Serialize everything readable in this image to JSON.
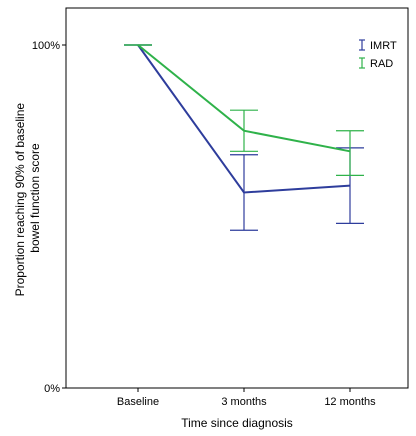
{
  "chart_data": {
    "type": "line",
    "categories": [
      "Baseline",
      "3 months",
      "12 months"
    ],
    "ylabel": "Proportion reaching 90% of baseline bowel function score",
    "ylabel_lines": [
      "Proportion reaching 90% of baseline",
      "bowel function score"
    ],
    "xlabel": "Time since diagnosis",
    "ylim": [
      0,
      100
    ],
    "y_ticks": [
      {
        "value": 0,
        "label": "0%"
      },
      {
        "value": 100,
        "label": "100%"
      }
    ],
    "grid": false,
    "legend_position": "top-right",
    "series": [
      {
        "name": "IMRT",
        "color": "#2e3d9c",
        "values": [
          100,
          57,
          59
        ],
        "lower": [
          100,
          46,
          48
        ],
        "upper": [
          100,
          68,
          70
        ]
      },
      {
        "name": "RAD",
        "color": "#2fb24a",
        "values": [
          100,
          75,
          69
        ],
        "lower": [
          100,
          69,
          62
        ],
        "upper": [
          100,
          81,
          75
        ]
      }
    ]
  }
}
